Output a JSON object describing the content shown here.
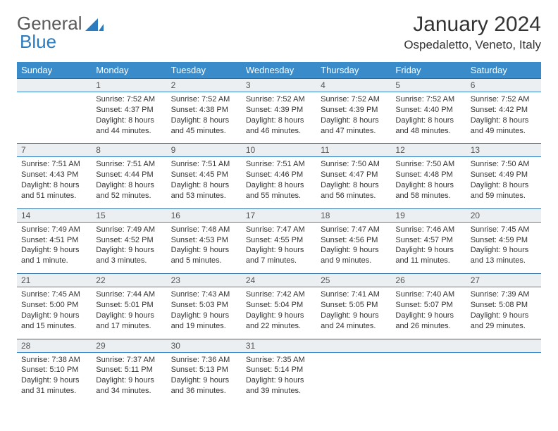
{
  "logo": {
    "text_a": "General",
    "text_b": "Blue"
  },
  "title": "January 2024",
  "location": "Ospedaletto, Veneto, Italy",
  "colors": {
    "header_bg": "#3a8bc9",
    "header_text": "#ffffff",
    "daynum_bg": "#eceff1",
    "border": "#2b6da3",
    "logo_gray": "#5a5a5a",
    "logo_blue": "#2b7bbf"
  },
  "day_headers": [
    "Sunday",
    "Monday",
    "Tuesday",
    "Wednesday",
    "Thursday",
    "Friday",
    "Saturday"
  ],
  "weeks": [
    {
      "nums": [
        "",
        "1",
        "2",
        "3",
        "4",
        "5",
        "6"
      ],
      "cells": [
        "",
        "Sunrise: 7:52 AM\nSunset: 4:37 PM\nDaylight: 8 hours and 44 minutes.",
        "Sunrise: 7:52 AM\nSunset: 4:38 PM\nDaylight: 8 hours and 45 minutes.",
        "Sunrise: 7:52 AM\nSunset: 4:39 PM\nDaylight: 8 hours and 46 minutes.",
        "Sunrise: 7:52 AM\nSunset: 4:39 PM\nDaylight: 8 hours and 47 minutes.",
        "Sunrise: 7:52 AM\nSunset: 4:40 PM\nDaylight: 8 hours and 48 minutes.",
        "Sunrise: 7:52 AM\nSunset: 4:42 PM\nDaylight: 8 hours and 49 minutes."
      ]
    },
    {
      "nums": [
        "7",
        "8",
        "9",
        "10",
        "11",
        "12",
        "13"
      ],
      "cells": [
        "Sunrise: 7:51 AM\nSunset: 4:43 PM\nDaylight: 8 hours and 51 minutes.",
        "Sunrise: 7:51 AM\nSunset: 4:44 PM\nDaylight: 8 hours and 52 minutes.",
        "Sunrise: 7:51 AM\nSunset: 4:45 PM\nDaylight: 8 hours and 53 minutes.",
        "Sunrise: 7:51 AM\nSunset: 4:46 PM\nDaylight: 8 hours and 55 minutes.",
        "Sunrise: 7:50 AM\nSunset: 4:47 PM\nDaylight: 8 hours and 56 minutes.",
        "Sunrise: 7:50 AM\nSunset: 4:48 PM\nDaylight: 8 hours and 58 minutes.",
        "Sunrise: 7:50 AM\nSunset: 4:49 PM\nDaylight: 8 hours and 59 minutes."
      ]
    },
    {
      "nums": [
        "14",
        "15",
        "16",
        "17",
        "18",
        "19",
        "20"
      ],
      "cells": [
        "Sunrise: 7:49 AM\nSunset: 4:51 PM\nDaylight: 9 hours and 1 minute.",
        "Sunrise: 7:49 AM\nSunset: 4:52 PM\nDaylight: 9 hours and 3 minutes.",
        "Sunrise: 7:48 AM\nSunset: 4:53 PM\nDaylight: 9 hours and 5 minutes.",
        "Sunrise: 7:47 AM\nSunset: 4:55 PM\nDaylight: 9 hours and 7 minutes.",
        "Sunrise: 7:47 AM\nSunset: 4:56 PM\nDaylight: 9 hours and 9 minutes.",
        "Sunrise: 7:46 AM\nSunset: 4:57 PM\nDaylight: 9 hours and 11 minutes.",
        "Sunrise: 7:45 AM\nSunset: 4:59 PM\nDaylight: 9 hours and 13 minutes."
      ]
    },
    {
      "nums": [
        "21",
        "22",
        "23",
        "24",
        "25",
        "26",
        "27"
      ],
      "cells": [
        "Sunrise: 7:45 AM\nSunset: 5:00 PM\nDaylight: 9 hours and 15 minutes.",
        "Sunrise: 7:44 AM\nSunset: 5:01 PM\nDaylight: 9 hours and 17 minutes.",
        "Sunrise: 7:43 AM\nSunset: 5:03 PM\nDaylight: 9 hours and 19 minutes.",
        "Sunrise: 7:42 AM\nSunset: 5:04 PM\nDaylight: 9 hours and 22 minutes.",
        "Sunrise: 7:41 AM\nSunset: 5:05 PM\nDaylight: 9 hours and 24 minutes.",
        "Sunrise: 7:40 AM\nSunset: 5:07 PM\nDaylight: 9 hours and 26 minutes.",
        "Sunrise: 7:39 AM\nSunset: 5:08 PM\nDaylight: 9 hours and 29 minutes."
      ]
    },
    {
      "nums": [
        "28",
        "29",
        "30",
        "31",
        "",
        "",
        ""
      ],
      "cells": [
        "Sunrise: 7:38 AM\nSunset: 5:10 PM\nDaylight: 9 hours and 31 minutes.",
        "Sunrise: 7:37 AM\nSunset: 5:11 PM\nDaylight: 9 hours and 34 minutes.",
        "Sunrise: 7:36 AM\nSunset: 5:13 PM\nDaylight: 9 hours and 36 minutes.",
        "Sunrise: 7:35 AM\nSunset: 5:14 PM\nDaylight: 9 hours and 39 minutes.",
        "",
        "",
        ""
      ]
    }
  ]
}
